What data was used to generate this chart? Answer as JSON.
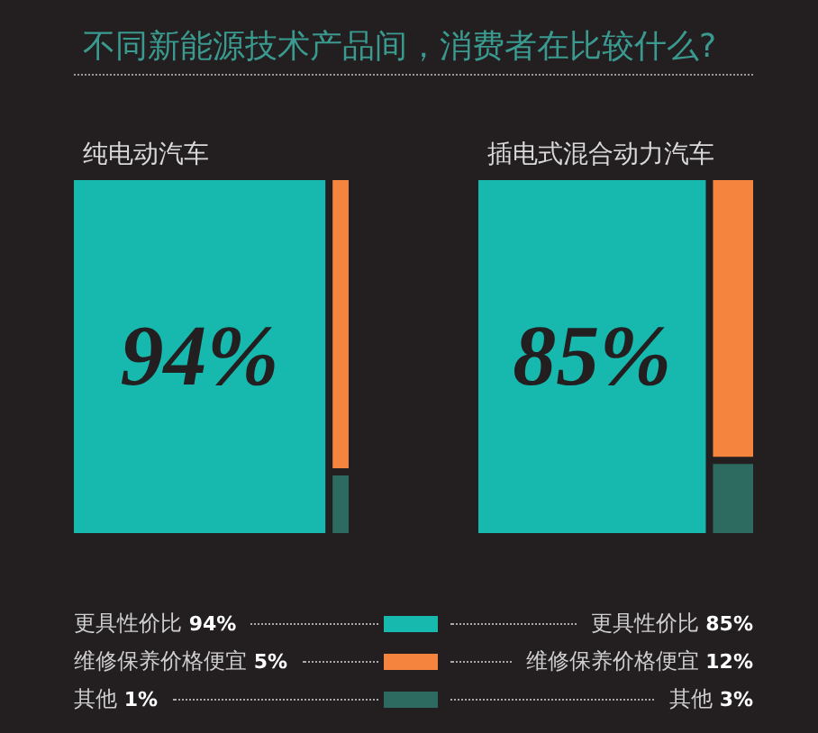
{
  "chart_data": {
    "type": "other",
    "title": "不同新能源技术产品间，消费者在比较什么?",
    "categories": [
      "更具性价比",
      "维修保养价格便宜",
      "其他"
    ],
    "colors": [
      "#17b8ad",
      "#f5843f",
      "#2d6b61"
    ],
    "series": [
      {
        "name": "纯电动汽车",
        "values": [
          94,
          5,
          1
        ],
        "value_labels": [
          "94%",
          "5%",
          "1%"
        ]
      },
      {
        "name": "插电式混合动力汽车",
        "values": [
          85,
          12,
          3
        ],
        "value_labels": [
          "85%",
          "12%",
          "3%"
        ]
      }
    ]
  }
}
